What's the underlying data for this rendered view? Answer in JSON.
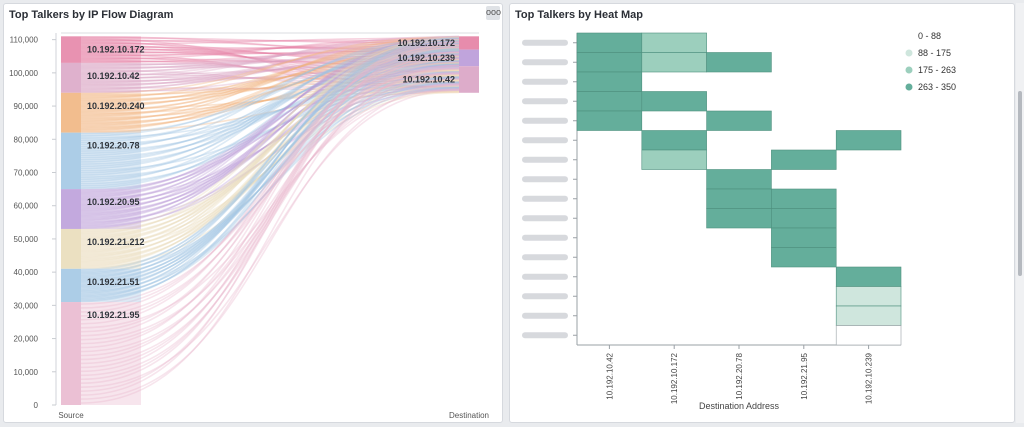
{
  "sankey_panel": {
    "title": "Top Talkers by IP Flow Diagram",
    "menu_label": "ooo",
    "chart_data": {
      "type": "sankey",
      "title": "",
      "yticks": [
        "0",
        "10,000",
        "20,000",
        "30,000",
        "40,000",
        "50,000",
        "60,000",
        "70,000",
        "80,000",
        "90,000",
        "100,000",
        "110,000"
      ],
      "ylim": [
        0,
        112000
      ],
      "x_labels": [
        "Source",
        "Destination"
      ],
      "sources": [
        {
          "name": "10.192.10.172",
          "from": 103000,
          "to": 111000,
          "color": "#e47fa3"
        },
        {
          "name": "10.192.10.42",
          "from": 94000,
          "to": 103000,
          "color": "#d9a3c4"
        },
        {
          "name": "10.192.20.240",
          "from": 82000,
          "to": 94000,
          "color": "#f0b27a"
        },
        {
          "name": "10.192.20.78",
          "from": 65000,
          "to": 82000,
          "color": "#9ec4e3"
        },
        {
          "name": "10.192.20.95",
          "from": 53000,
          "to": 65000,
          "color": "#b99ad8"
        },
        {
          "name": "10.192.21.212",
          "from": 41000,
          "to": 53000,
          "color": "#e7dbb6"
        },
        {
          "name": "10.192.21.51",
          "from": 31000,
          "to": 41000,
          "color": "#9ec4e3"
        },
        {
          "name": "10.192.21.95",
          "from": 0,
          "to": 31000,
          "color": "#e8b5cc"
        }
      ],
      "destinations": [
        {
          "name": "10.192.10.172",
          "from": 107000,
          "to": 111000,
          "color": "#e47fa3"
        },
        {
          "name": "10.192.10.239",
          "from": 102000,
          "to": 107000,
          "color": "#b99ad8"
        },
        {
          "name": "10.192.10.42",
          "from": 94000,
          "to": 102000,
          "color": "#d9a3c4"
        }
      ]
    }
  },
  "heatmap_panel": {
    "title": "Top Talkers by Heat Map",
    "chart_data": {
      "type": "heatmap",
      "xlabel": "Destination Address",
      "ylabel": "",
      "x_categories": [
        "10.192.10.42",
        "10.192.10.172",
        "10.192.20.78",
        "10.192.21.95",
        "10.192.10.239"
      ],
      "row_count": 16,
      "legend": [
        {
          "label": "0 - 88",
          "color": "#ffffff"
        },
        {
          "label": "88 - 175",
          "color": "#cfe6dd"
        },
        {
          "label": "175 - 263",
          "color": "#9ccfbd"
        },
        {
          "label": "263 - 350",
          "color": "#64ae9b"
        }
      ],
      "cells": [
        {
          "row": 0,
          "col": 0,
          "bin": 3
        },
        {
          "row": 0,
          "col": 1,
          "bin": 2
        },
        {
          "row": 1,
          "col": 0,
          "bin": 3
        },
        {
          "row": 1,
          "col": 1,
          "bin": 2
        },
        {
          "row": 1,
          "col": 2,
          "bin": 3
        },
        {
          "row": 2,
          "col": 0,
          "bin": 3
        },
        {
          "row": 3,
          "col": 0,
          "bin": 3
        },
        {
          "row": 3,
          "col": 1,
          "bin": 3
        },
        {
          "row": 4,
          "col": 0,
          "bin": 3
        },
        {
          "row": 4,
          "col": 2,
          "bin": 3
        },
        {
          "row": 5,
          "col": 1,
          "bin": 3
        },
        {
          "row": 5,
          "col": 4,
          "bin": 3
        },
        {
          "row": 6,
          "col": 1,
          "bin": 2
        },
        {
          "row": 6,
          "col": 3,
          "bin": 3
        },
        {
          "row": 7,
          "col": 2,
          "bin": 3
        },
        {
          "row": 8,
          "col": 2,
          "bin": 3
        },
        {
          "row": 8,
          "col": 3,
          "bin": 3
        },
        {
          "row": 9,
          "col": 2,
          "bin": 3
        },
        {
          "row": 9,
          "col": 3,
          "bin": 3
        },
        {
          "row": 10,
          "col": 3,
          "bin": 3
        },
        {
          "row": 11,
          "col": 3,
          "bin": 3
        },
        {
          "row": 12,
          "col": 4,
          "bin": 3
        },
        {
          "row": 13,
          "col": 4,
          "bin": 1
        },
        {
          "row": 14,
          "col": 4,
          "bin": 1
        },
        {
          "row": 15,
          "col": 4,
          "bin": 0
        }
      ]
    }
  }
}
